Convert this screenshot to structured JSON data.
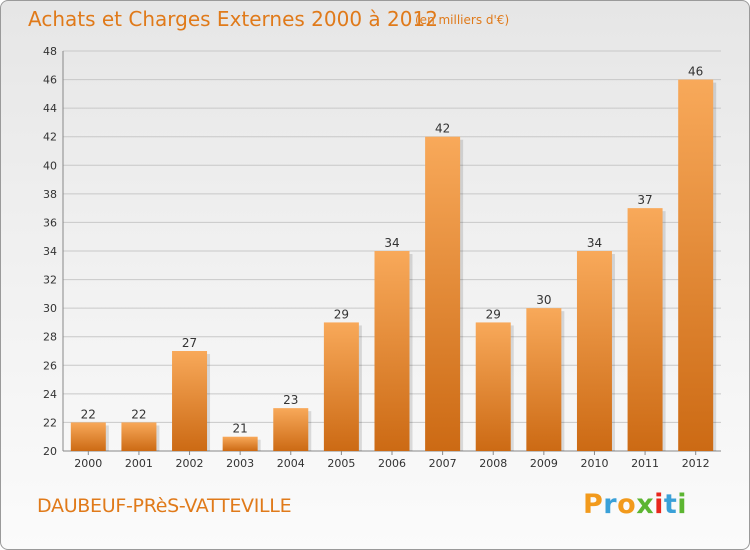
{
  "header": {
    "title": "Achats et Charges Externes 2000 à 2012",
    "subtitle": "(en milliers d'€)"
  },
  "footer": {
    "place_name": "DAUBEUF-PRèS-VATTEVILLE",
    "logo_text": "Proxiti",
    "logo_colors": [
      "#f29a1c",
      "#3aa0d8",
      "#f29a1c",
      "#5cb531",
      "#e8261c",
      "#3aa0d8",
      "#5cb531"
    ]
  },
  "colors": {
    "bar_light": "#f8a95a",
    "bar_dark": "#cc6a14",
    "title": "#e07a1a",
    "grid": "#c8c8c8"
  },
  "chart_data": {
    "type": "bar",
    "categories": [
      "2000",
      "2001",
      "2002",
      "2003",
      "2004",
      "2005",
      "2006",
      "2007",
      "2008",
      "2009",
      "2010",
      "2011",
      "2012"
    ],
    "values": [
      22,
      22,
      27,
      21,
      23,
      29,
      34,
      42,
      29,
      30,
      34,
      37,
      46
    ],
    "ylim": [
      20,
      48
    ],
    "yticks": [
      20,
      22,
      24,
      26,
      28,
      30,
      32,
      34,
      36,
      38,
      40,
      42,
      44,
      46,
      48
    ],
    "xlabel": "",
    "ylabel": "",
    "grid": true,
    "data_labels": true
  }
}
